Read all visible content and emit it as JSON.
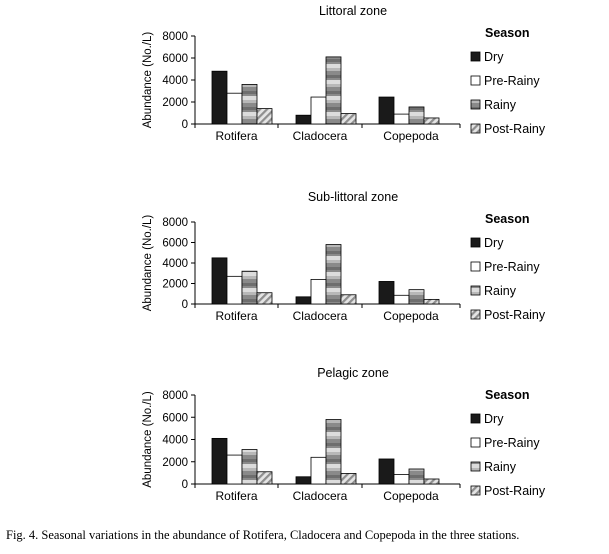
{
  "figure": {
    "caption": "Fig. 4. Seasonal variations in the abundance of Rotifera, Cladocera and Copepoda in the three stations."
  },
  "chart_data": [
    {
      "type": "bar",
      "title": "Littoral zone",
      "ylabel": "Abundance (No./L)",
      "xlabel": "",
      "ylim": [
        0,
        8000
      ],
      "yticks": [
        "0",
        "2000",
        "4000",
        "6000",
        "8000"
      ],
      "categories": [
        "Rotifera",
        "Cladocera",
        "Copepoda"
      ],
      "legend_title": "Season",
      "legend_position": "right",
      "grid": false,
      "series": [
        {
          "name": "Dry",
          "values": [
            4800,
            800,
            2450
          ]
        },
        {
          "name": "Pre-Rainy",
          "values": [
            2800,
            2450,
            900
          ]
        },
        {
          "name": "Rainy",
          "values": [
            3600,
            6100,
            1550
          ]
        },
        {
          "name": "Post-Rainy",
          "values": [
            1400,
            950,
            550
          ]
        }
      ]
    },
    {
      "type": "bar",
      "title": "Sub-littoral zone",
      "ylabel": "Abundance (No./L)",
      "xlabel": "",
      "ylim": [
        0,
        8000
      ],
      "yticks": [
        "0",
        "2000",
        "4000",
        "6000",
        "8000"
      ],
      "categories": [
        "Rotifera",
        "Cladocera",
        "Copepoda"
      ],
      "legend_title": "Season",
      "legend_position": "right",
      "grid": false,
      "series": [
        {
          "name": "Dry",
          "values": [
            4500,
            700,
            2200
          ]
        },
        {
          "name": "Pre-Rainy",
          "values": [
            2700,
            2400,
            850
          ]
        },
        {
          "name": "Rainy",
          "values": [
            3200,
            5800,
            1400
          ]
        },
        {
          "name": "Post-Rainy",
          "values": [
            1100,
            900,
            450
          ]
        }
      ]
    },
    {
      "type": "bar",
      "title": "Pelagic zone",
      "ylabel": "Abundance (No./L)",
      "xlabel": "",
      "ylim": [
        0,
        8000
      ],
      "yticks": [
        "0",
        "2000",
        "4000",
        "6000",
        "8000"
      ],
      "categories": [
        "Rotifera",
        "Cladocera",
        "Copepoda"
      ],
      "legend_title": "Season",
      "legend_position": "right",
      "grid": false,
      "series": [
        {
          "name": "Dry",
          "values": [
            4100,
            650,
            2250
          ]
        },
        {
          "name": "Pre-Rainy",
          "values": [
            2600,
            2400,
            850
          ]
        },
        {
          "name": "Rainy",
          "values": [
            3100,
            5800,
            1350
          ]
        },
        {
          "name": "Post-Rainy",
          "values": [
            1100,
            950,
            450
          ]
        }
      ]
    }
  ]
}
